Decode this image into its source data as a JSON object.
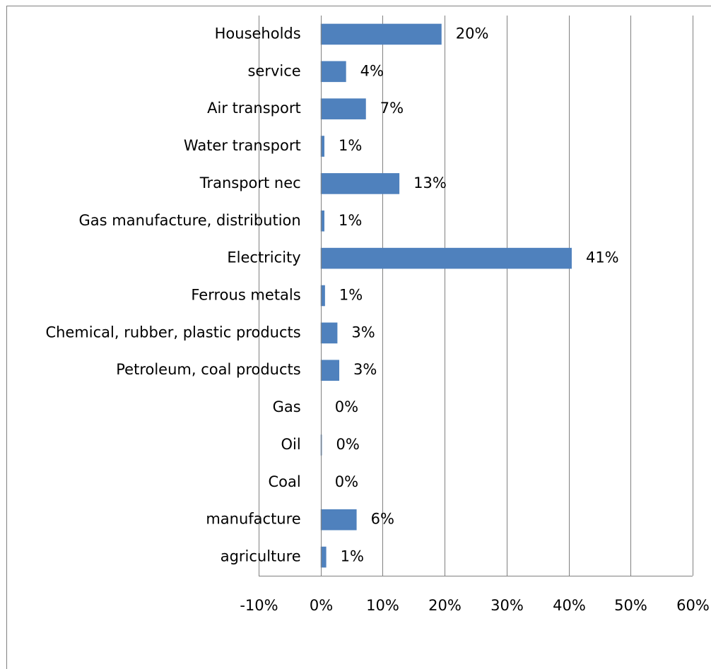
{
  "chart_data": {
    "type": "bar",
    "orientation": "horizontal",
    "categories": [
      "Households",
      "service",
      "Air transport",
      "Water transport",
      "Transport nec",
      "Gas manufacture, distribution",
      "Electricity",
      "Ferrous metals",
      "Chemical, rubber, plastic products",
      "Petroleum, coal products",
      "Gas",
      "Oil",
      "Coal",
      "manufacture",
      "agriculture"
    ],
    "values": [
      19.5,
      4.1,
      7.3,
      0.6,
      12.7,
      0.6,
      40.5,
      0.7,
      2.7,
      3.0,
      0,
      0.2,
      0,
      5.8,
      0.9
    ],
    "value_labels": [
      "20%",
      "4%",
      "7%",
      "1%",
      "13%",
      "1%",
      "41%",
      "1%",
      "3%",
      "3%",
      "0%",
      "0%",
      "0%",
      "6%",
      "1%"
    ],
    "color": "#4f81bd",
    "xlim": [
      -10,
      60
    ],
    "xticks": [
      {
        "value": -10,
        "label": "-10%"
      },
      {
        "value": 0,
        "label": "0%"
      },
      {
        "value": 10,
        "label": "10%"
      },
      {
        "value": 20,
        "label": "20%"
      },
      {
        "value": 30,
        "label": "30%"
      },
      {
        "value": 40,
        "label": "40%"
      },
      {
        "value": 50,
        "label": "50%"
      },
      {
        "value": 60,
        "label": "60%"
      }
    ],
    "grid": true
  }
}
